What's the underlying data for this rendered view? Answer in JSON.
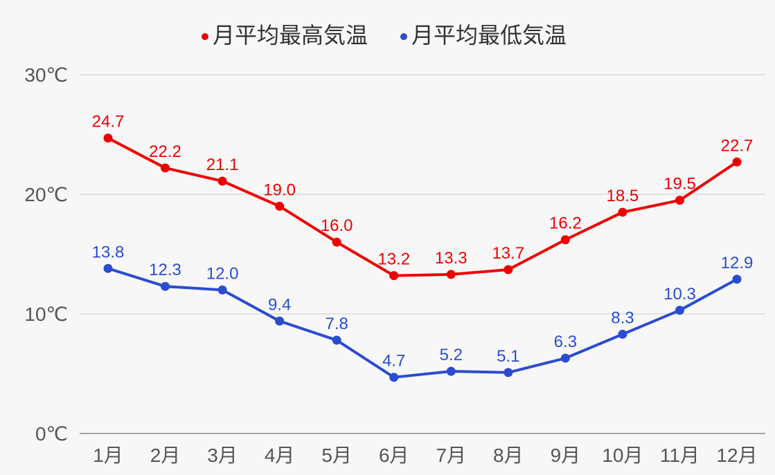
{
  "chart_data": {
    "type": "line",
    "title": "",
    "xlabel": "",
    "ylabel": "",
    "categories": [
      "1月",
      "2月",
      "3月",
      "4月",
      "5月",
      "6月",
      "7月",
      "8月",
      "9月",
      "10月",
      "11月",
      "12月"
    ],
    "yticks": [
      0,
      10,
      20,
      30
    ],
    "ytick_labels": [
      "0℃",
      "10℃",
      "20℃",
      "30℃"
    ],
    "ylim": [
      0,
      30
    ],
    "grid": true,
    "legend_position": "top-center",
    "series": [
      {
        "name": "月平均最高気温",
        "color": "#ee0000",
        "values": [
          24.7,
          22.2,
          21.1,
          19.0,
          16.0,
          13.2,
          13.3,
          13.7,
          16.2,
          18.5,
          19.5,
          22.7
        ],
        "labels": [
          "24.7",
          "22.2",
          "21.1",
          "19.0",
          "16.0",
          "13.2",
          "13.3",
          "13.7",
          "16.2",
          "18.5",
          "19.5",
          "22.7"
        ]
      },
      {
        "name": "月平均最低気温",
        "color": "#2a4ccf",
        "values": [
          13.8,
          12.3,
          12.0,
          9.4,
          7.8,
          4.7,
          5.2,
          5.1,
          6.3,
          8.3,
          10.3,
          12.9
        ],
        "labels": [
          "13.8",
          "12.3",
          "12.0",
          "9.4",
          "7.8",
          "4.7",
          "5.2",
          "5.1",
          "6.3",
          "8.3",
          "10.3",
          "12.9"
        ]
      }
    ]
  }
}
